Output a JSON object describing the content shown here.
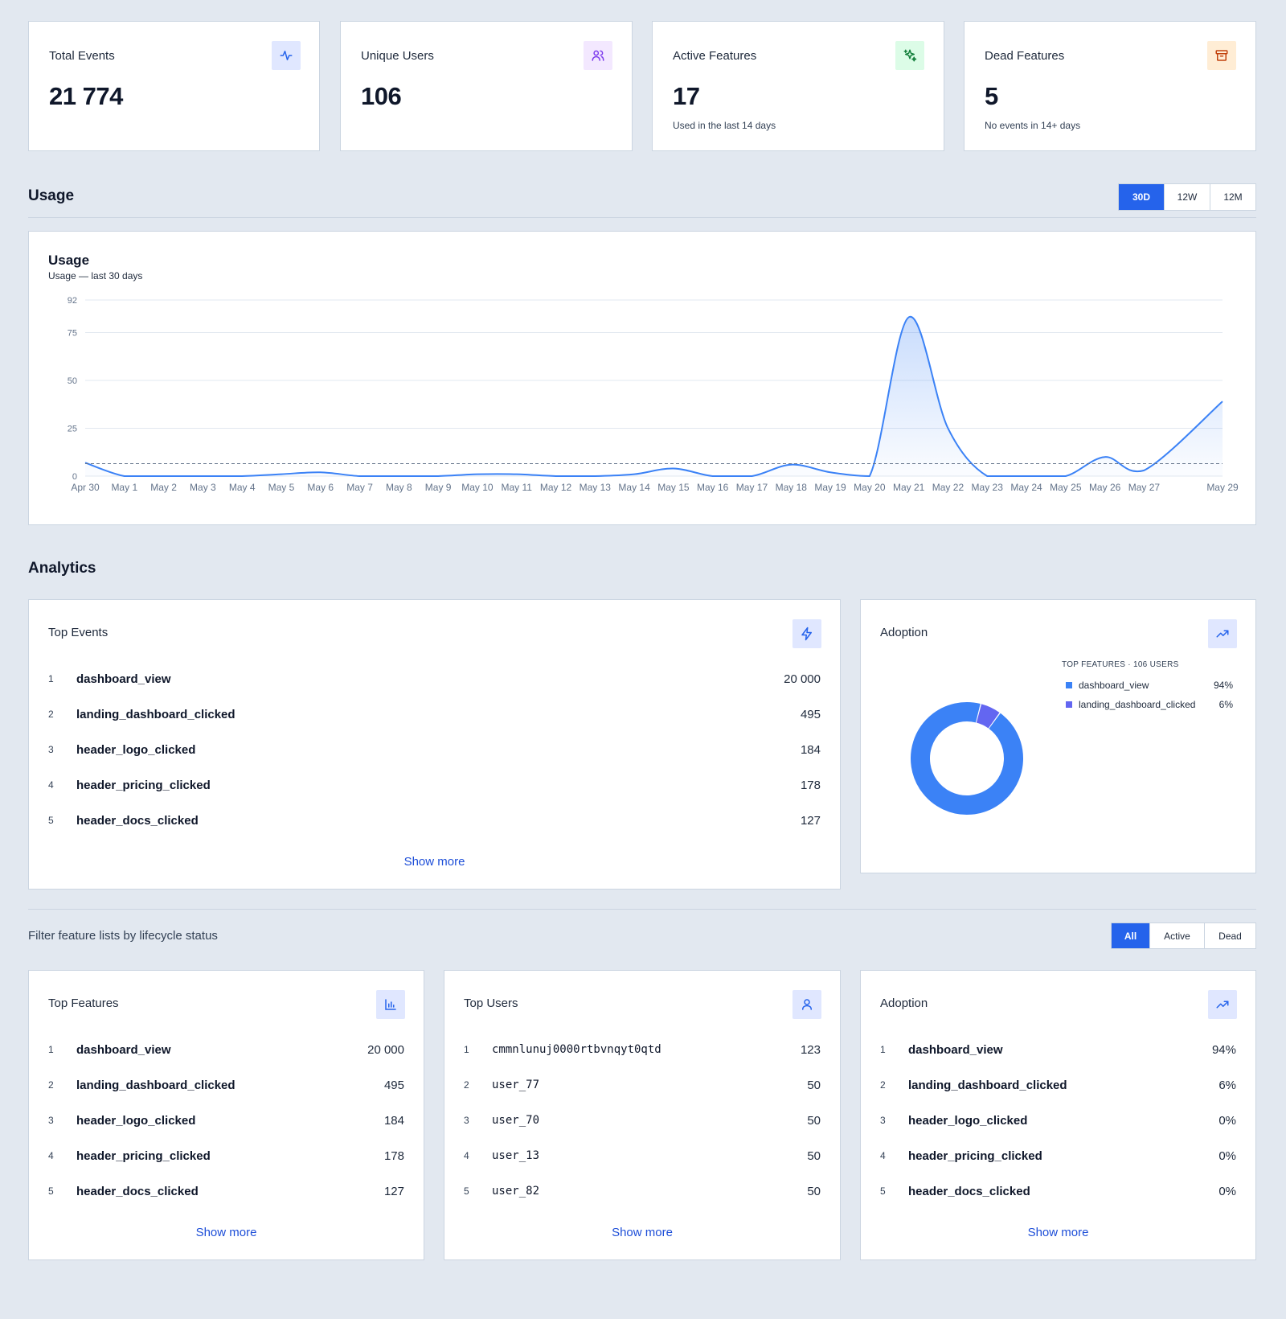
{
  "stats": [
    {
      "title": "Total Events",
      "value": "21 774",
      "sub": "",
      "icon": "activity-icon"
    },
    {
      "title": "Unique Users",
      "value": "106",
      "sub": "",
      "icon": "users-icon"
    },
    {
      "title": "Active Features",
      "value": "17",
      "sub": "Used in the last 14 days",
      "icon": "sparkles-icon"
    },
    {
      "title": "Dead Features",
      "value": "5",
      "sub": "No events in 14+ days",
      "icon": "archive-icon"
    }
  ],
  "usage": {
    "section_title": "Usage",
    "ranges": [
      "30D",
      "12W",
      "12M"
    ],
    "active_range": "30D",
    "chart_title": "Usage",
    "chart_subtitle": "Usage — last 30 days"
  },
  "chart_data": {
    "type": "area",
    "title": "Usage",
    "subtitle": "Usage — last 30 days",
    "x": [
      "Apr 30",
      "May 1",
      "May 2",
      "May 3",
      "May 4",
      "May 5",
      "May 6",
      "May 7",
      "May 8",
      "May 9",
      "May 10",
      "May 11",
      "May 12",
      "May 13",
      "May 14",
      "May 15",
      "May 16",
      "May 17",
      "May 18",
      "May 19",
      "May 20",
      "May 21",
      "May 22",
      "May 23",
      "May 24",
      "May 25",
      "May 26",
      "May 27",
      "May 29"
    ],
    "x_positions": [
      0,
      1,
      2,
      3,
      4,
      5,
      6,
      7,
      8,
      9,
      10,
      11,
      12,
      13,
      14,
      15,
      16,
      17,
      18,
      19,
      20,
      21,
      22,
      23,
      24,
      25,
      26,
      27,
      29
    ],
    "series": [
      {
        "values": [
          7,
          0,
          0,
          0,
          0,
          1,
          2,
          0,
          0,
          0,
          1,
          1,
          0,
          0,
          1,
          4,
          0,
          0,
          6,
          2,
          0,
          83,
          25,
          0,
          0,
          0,
          10,
          3,
          39
        ]
      }
    ],
    "average": 6.5,
    "yticks": [
      0,
      25,
      50,
      75,
      92
    ],
    "ylim": [
      0,
      92
    ],
    "grid": true,
    "color": "#3b82f6"
  },
  "analytics": {
    "section_title": "Analytics",
    "top_events": {
      "title": "Top Events",
      "icon": "zap-icon",
      "rows": [
        {
          "rank": "1",
          "label": "dashboard_view",
          "value": "20 000"
        },
        {
          "rank": "2",
          "label": "landing_dashboard_clicked",
          "value": "495"
        },
        {
          "rank": "3",
          "label": "header_logo_clicked",
          "value": "184"
        },
        {
          "rank": "4",
          "label": "header_pricing_clicked",
          "value": "178"
        },
        {
          "rank": "5",
          "label": "header_docs_clicked",
          "value": "127"
        }
      ],
      "show_more": "Show more"
    },
    "adoption_donut": {
      "title": "Adoption",
      "icon": "trending-up-icon",
      "legend_title": "TOP FEATURES · 106 USERS",
      "slices": [
        {
          "label": "dashboard_view",
          "pct": "94%",
          "value": 94,
          "color": "#3b82f6"
        },
        {
          "label": "landing_dashboard_clicked",
          "pct": "6%",
          "value": 6,
          "color": "#6366f1"
        }
      ]
    }
  },
  "filter": {
    "text": "Filter feature lists by lifecycle status",
    "options": [
      "All",
      "Active",
      "Dead"
    ],
    "active": "All"
  },
  "top_features": {
    "title": "Top Features",
    "icon": "bar-chart-icon",
    "rows": [
      {
        "rank": "1",
        "label": "dashboard_view",
        "value": "20 000"
      },
      {
        "rank": "2",
        "label": "landing_dashboard_clicked",
        "value": "495"
      },
      {
        "rank": "3",
        "label": "header_logo_clicked",
        "value": "184"
      },
      {
        "rank": "4",
        "label": "header_pricing_clicked",
        "value": "178"
      },
      {
        "rank": "5",
        "label": "header_docs_clicked",
        "value": "127"
      }
    ],
    "show_more": "Show more"
  },
  "top_users": {
    "title": "Top Users",
    "icon": "user-icon",
    "rows": [
      {
        "rank": "1",
        "label": "cmmnlunuj0000rtbvnqyt0qtd",
        "value": "123"
      },
      {
        "rank": "2",
        "label": "user_77",
        "value": "50"
      },
      {
        "rank": "3",
        "label": "user_70",
        "value": "50"
      },
      {
        "rank": "4",
        "label": "user_13",
        "value": "50"
      },
      {
        "rank": "5",
        "label": "user_82",
        "value": "50"
      }
    ],
    "show_more": "Show more"
  },
  "adoption_list": {
    "title": "Adoption",
    "icon": "trending-up-icon",
    "rows": [
      {
        "rank": "1",
        "label": "dashboard_view",
        "value": "94%"
      },
      {
        "rank": "2",
        "label": "landing_dashboard_clicked",
        "value": "6%"
      },
      {
        "rank": "3",
        "label": "header_logo_clicked",
        "value": "0%"
      },
      {
        "rank": "4",
        "label": "header_pricing_clicked",
        "value": "0%"
      },
      {
        "rank": "5",
        "label": "header_docs_clicked",
        "value": "0%"
      }
    ],
    "show_more": "Show more"
  }
}
